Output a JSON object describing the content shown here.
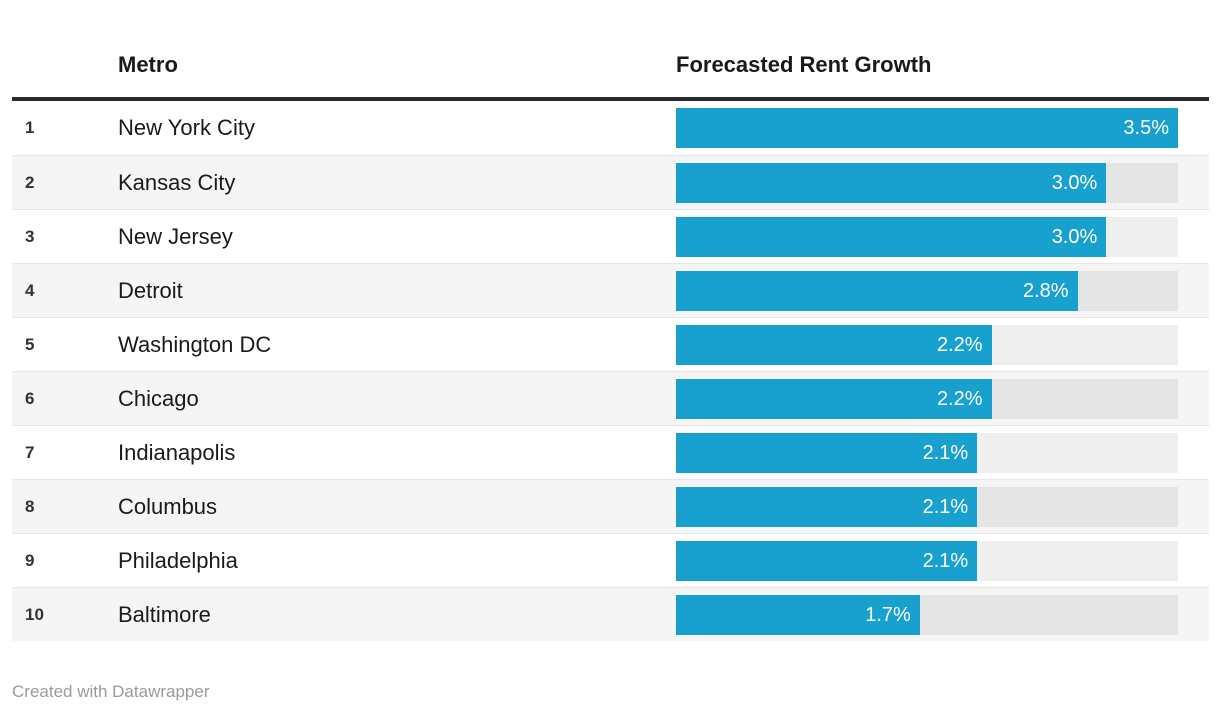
{
  "header": {
    "metro_label": "Metro",
    "value_label": "Forecasted Rent Growth"
  },
  "footer": {
    "credit": "Created with Datawrapper"
  },
  "colors": {
    "bar_fill": "#18a0ce",
    "bar_track": "rgba(0,0,0,0.062)",
    "header_rule": "#2b2b2b",
    "row_stripe": "#f5f5f5",
    "value_text": "#ffffff",
    "credit_text": "#9b9b9b"
  },
  "chart_data": {
    "type": "bar",
    "title": "Forecasted Rent Growth",
    "xlabel": "",
    "ylabel": "",
    "xlim": [
      0,
      3.5
    ],
    "grid": false,
    "legend": false,
    "columns": [
      "Rank",
      "Metro",
      "Forecasted Rent Growth"
    ],
    "categories": [
      "New York City",
      "Kansas City",
      "New Jersey",
      "Detroit",
      "Washington DC",
      "Chicago",
      "Indianapolis",
      "Columbus",
      "Philadelphia",
      "Baltimore"
    ],
    "ranks": [
      "1",
      "2",
      "3",
      "4",
      "5",
      "6",
      "7",
      "8",
      "9",
      "10"
    ],
    "values": [
      3.5,
      3.0,
      3.0,
      2.8,
      2.2,
      2.2,
      2.1,
      2.1,
      2.1,
      1.7
    ],
    "value_labels": [
      "3.5%",
      "3.0%",
      "3.0%",
      "2.8%",
      "2.2%",
      "2.2%",
      "2.1%",
      "2.1%",
      "2.1%",
      "1.7%"
    ]
  }
}
